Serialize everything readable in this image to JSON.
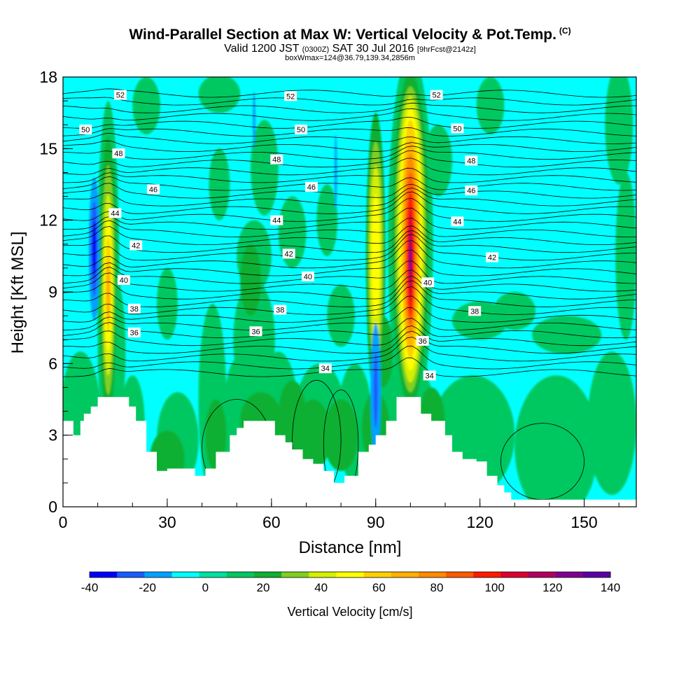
{
  "header": {
    "title": "Wind-Parallel Section at Max W: Vertical Velocity & Pot.Temp.",
    "copyright": "(C)",
    "valid_prefix": "Valid 1200 JST",
    "valid_utc": "(0300Z)",
    "valid_date": "SAT 30 Jul 2016",
    "forecast": "[9hrFcst@2142z]",
    "box_info": "boxWmax=124@36.79,139.34,2856m"
  },
  "chart_data": {
    "type": "heatmap",
    "xlabel": "Distance [nm]",
    "ylabel": "Height [Kft MSL]",
    "xlim": [
      0,
      165
    ],
    "ylim": [
      0,
      18
    ],
    "x_ticks": [
      "0",
      "30",
      "60",
      "90",
      "120",
      "150"
    ],
    "y_ticks": [
      "0",
      "3",
      "6",
      "9",
      "12",
      "15",
      "18"
    ],
    "colorbar": {
      "label": "Vertical Velocity [cm/s]",
      "tick_labels": [
        "-40",
        "-20",
        "0",
        "20",
        "40",
        "60",
        "80",
        "100",
        "120",
        "140"
      ],
      "levels": [
        -40,
        -30,
        -20,
        -10,
        0,
        10,
        20,
        30,
        40,
        50,
        60,
        70,
        80,
        90,
        100,
        110,
        120,
        130,
        140
      ],
      "colors": [
        "#0000ff",
        "#1a5cff",
        "#00a2ff",
        "#00ffff",
        "#00e0a0",
        "#00c860",
        "#10b030",
        "#80d020",
        "#d4f000",
        "#ffff00",
        "#ffd000",
        "#ffb000",
        "#ff8a00",
        "#ff5a00",
        "#ff1a00",
        "#dc0030",
        "#b00060",
        "#800090",
        "#5a00a0"
      ]
    },
    "theta_contours": [
      {
        "value": "52",
        "labels": [
          {
            "x": 16.5,
            "y": 17.25
          },
          {
            "x": 65.5,
            "y": 17.2
          },
          {
            "x": 107.5,
            "y": 17.25
          }
        ]
      },
      {
        "value": "50",
        "labels": [
          {
            "x": 6.5,
            "y": 15.8
          },
          {
            "x": 68.5,
            "y": 15.8
          },
          {
            "x": 113.5,
            "y": 15.85
          }
        ]
      },
      {
        "value": "48",
        "labels": [
          {
            "x": 16,
            "y": 14.8
          },
          {
            "x": 61.5,
            "y": 14.55
          },
          {
            "x": 117.5,
            "y": 14.5
          }
        ]
      },
      {
        "value": "46",
        "labels": [
          {
            "x": 26,
            "y": 13.3
          },
          {
            "x": 71.5,
            "y": 13.4
          },
          {
            "x": 117.5,
            "y": 13.25
          }
        ]
      },
      {
        "value": "44",
        "labels": [
          {
            "x": 15,
            "y": 12.3
          },
          {
            "x": 61.5,
            "y": 12
          },
          {
            "x": 113.5,
            "y": 11.95
          }
        ]
      },
      {
        "value": "42",
        "labels": [
          {
            "x": 21,
            "y": 10.95
          },
          {
            "x": 65,
            "y": 10.6
          },
          {
            "x": 123.5,
            "y": 10.45
          }
        ]
      },
      {
        "value": "40",
        "labels": [
          {
            "x": 17.5,
            "y": 9.5
          },
          {
            "x": 70.5,
            "y": 9.65
          },
          {
            "x": 105,
            "y": 9.4
          }
        ]
      },
      {
        "value": "38",
        "labels": [
          {
            "x": 20.5,
            "y": 8.3
          },
          {
            "x": 62.5,
            "y": 8.25
          },
          {
            "x": 118.5,
            "y": 8.2
          }
        ]
      },
      {
        "value": "36",
        "labels": [
          {
            "x": 20.5,
            "y": 7.3
          },
          {
            "x": 55.5,
            "y": 7.35
          },
          {
            "x": 103.5,
            "y": 6.95
          }
        ]
      },
      {
        "value": "34",
        "labels": [
          {
            "x": 75.5,
            "y": 5.8
          },
          {
            "x": 105.5,
            "y": 5.5
          }
        ]
      }
    ]
  }
}
